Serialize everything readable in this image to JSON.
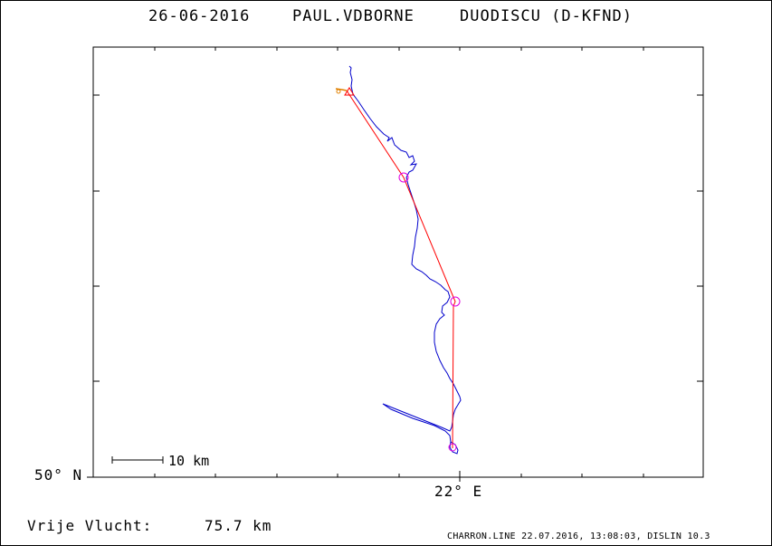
{
  "header": {
    "date": "26-06-2016",
    "pilot": "PAUL.VDBORNE",
    "glider": "DUODISCU (D-KFND)"
  },
  "axes": {
    "y_label": "50° N",
    "x_label": "22° E"
  },
  "scale_bar": {
    "label": "10 km"
  },
  "summary": {
    "distance_caption": "Vrije Vlucht:",
    "distance_value": "75.7 km"
  },
  "footer": {
    "note": "CHARRON.LINE 22.07.2016, 13:08:03, DISLIN 10.3"
  },
  "colors": {
    "track": "#0000cc",
    "task_line": "#ff0000",
    "turnpoint": "#e000e0",
    "start_marker": "#e08000",
    "frame": "#000000"
  }
}
